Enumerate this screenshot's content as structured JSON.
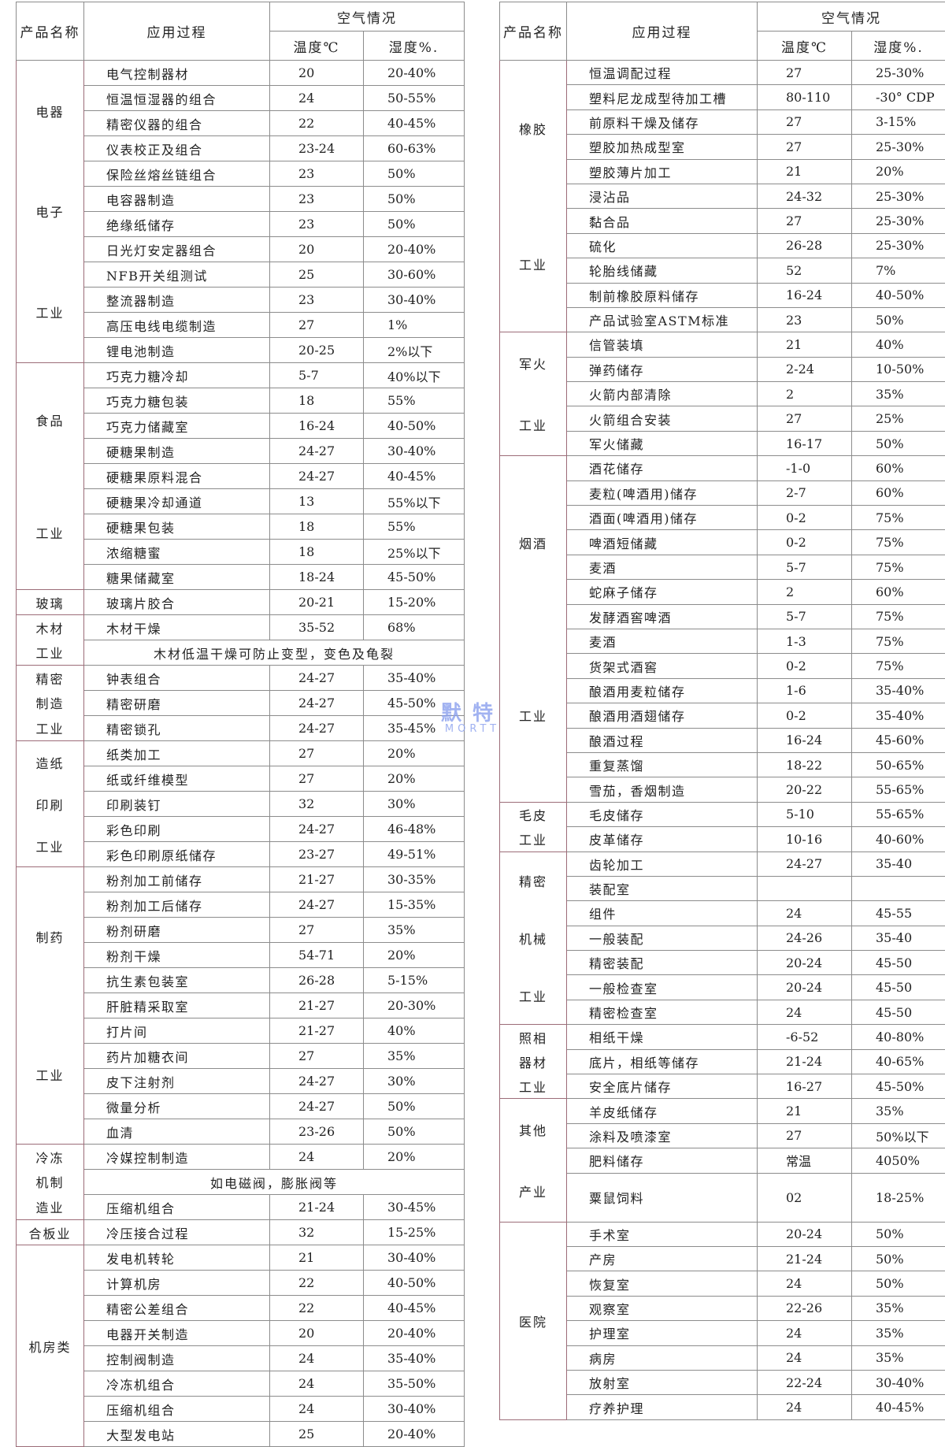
{
  "headers": {
    "product": "产品名称",
    "process": "应用过程",
    "air": "空气情况",
    "temp": "温度℃",
    "humidity": "湿度%."
  },
  "watermark": {
    "cn": "默特",
    "en": "MORTT"
  },
  "left": [
    {
      "category": [
        "电器",
        "电子",
        "工业"
      ],
      "rows": [
        [
          "电气控制器材",
          "20",
          "20-40%"
        ],
        [
          "恒温恒湿器的组合",
          "24",
          "50-55%"
        ],
        [
          "精密仪器的组合",
          "22",
          "40-45%"
        ],
        [
          "仪表校正及组合",
          "23-24",
          "60-63%"
        ],
        [
          "保险丝熔丝链组合",
          "23",
          "50%"
        ],
        [
          "电容器制造",
          "23",
          "50%"
        ],
        [
          "绝缘纸储存",
          "23",
          "50%"
        ],
        [
          "日光灯安定器组合",
          "20",
          "20-40%"
        ],
        [
          "NFB开关组测试",
          "25",
          "30-60%"
        ],
        [
          "整流器制造",
          "23",
          "30-40%"
        ],
        [
          "高压电线电缆制造",
          "27",
          "1%"
        ],
        [
          "锂电池制造",
          "20-25",
          "2%以下"
        ]
      ]
    },
    {
      "category": [
        "食品",
        "工业"
      ],
      "rows": [
        [
          "巧克力糖冷却",
          "5-7",
          "40%以下"
        ],
        [
          "巧克力糖包装",
          "18",
          "55%"
        ],
        [
          "巧克力储藏室",
          "16-24",
          "40-50%"
        ],
        [
          "硬糖果制造",
          "24-27",
          "30-40%"
        ],
        [
          "硬糖果原料混合",
          "24-27",
          "40-45%"
        ],
        [
          "硬糖果冷却通道",
          "13",
          "55%以下"
        ],
        [
          "硬糖果包装",
          "18",
          "55%"
        ],
        [
          "浓缩糖蜜",
          "18",
          "25%以下"
        ],
        [
          "糖果储藏室",
          "18-24",
          "45-50%"
        ]
      ]
    },
    {
      "category": [
        "玻璃"
      ],
      "rows": [
        [
          "玻璃片胶合",
          "20-21",
          "15-20%"
        ]
      ]
    },
    {
      "category": [
        "木材",
        "工业"
      ],
      "rows": [
        [
          "木材干燥",
          "35-52",
          "68%"
        ],
        {
          "merged": "木材低温干燥可防止变型，变色及龟裂"
        }
      ]
    },
    {
      "category": [
        "精密",
        "制造",
        "工业"
      ],
      "rows": [
        [
          "钟表组合",
          "24-27",
          "35-40%"
        ],
        [
          "精密研磨",
          "24-27",
          "45-50%"
        ],
        [
          "精密锁孔",
          "24-27",
          "35-45%"
        ]
      ]
    },
    {
      "category": [
        "造纸",
        "印刷",
        "工业"
      ],
      "rows": [
        [
          "纸类加工",
          "27",
          "20%"
        ],
        [
          "纸或纤维模型",
          "27",
          "20%"
        ],
        [
          "印刷装钉",
          "32",
          "30%"
        ],
        [
          "彩色印刷",
          "24-27",
          "46-48%"
        ],
        [
          "彩色印刷原纸储存",
          "23-27",
          "49-51%"
        ]
      ]
    },
    {
      "category": [
        "制药",
        "工业"
      ],
      "rows": [
        [
          "粉剂加工前储存",
          "21-27",
          "30-35%"
        ],
        [
          "粉剂加工后储存",
          "24-27",
          "15-35%"
        ],
        [
          "粉剂研磨",
          "27",
          "35%"
        ],
        [
          "粉剂干燥",
          "54-71",
          "20%"
        ],
        [
          "抗生素包装室",
          "26-28",
          "5-15%"
        ],
        [
          "肝脏精采取室",
          "21-27",
          "20-30%"
        ],
        [
          "打片间",
          "21-27",
          "40%"
        ],
        [
          "药片加糖衣间",
          "27",
          "35%"
        ],
        [
          "皮下注射剂",
          "24-27",
          "30%"
        ],
        [
          "微量分析",
          "24-27",
          "50%"
        ],
        [
          "血清",
          "23-26",
          "50%"
        ]
      ]
    },
    {
      "category": [
        "冷冻",
        "机制",
        "造业"
      ],
      "rows": [
        [
          "冷媒控制制造",
          "24",
          "20%"
        ],
        {
          "merged": "如电磁阀，膨胀阀等"
        },
        [
          "压缩机组合",
          "21-24",
          "30-45%"
        ]
      ]
    },
    {
      "category": [
        "合板业"
      ],
      "rows": [
        [
          "冷压接合过程",
          "32",
          "15-25%"
        ]
      ]
    },
    {
      "category": [
        "机房类"
      ],
      "rows": [
        [
          "发电机转轮",
          "21",
          "30-40%"
        ],
        [
          "计算机房",
          "22",
          "40-50%"
        ],
        [
          "精密公差组合",
          "22",
          "40-45%"
        ],
        [
          "电器开关制造",
          "20",
          "20-40%"
        ],
        [
          "控制阀制造",
          "24",
          "35-40%"
        ],
        [
          "冷冻机组合",
          "24",
          "35-50%"
        ],
        [
          "压缩机组合",
          "24",
          "30-40%"
        ],
        [
          "大型发电站",
          "25",
          "20-40%"
        ]
      ]
    }
  ],
  "right": [
    {
      "category": [
        "橡胶",
        "工业"
      ],
      "rows": [
        [
          "恒温调配过程",
          "27",
          "25-30%"
        ],
        [
          "塑料尼龙成型待加工槽",
          "80-110",
          "-30° CDP"
        ],
        [
          "前原料干燥及储存",
          "27",
          "3-15%"
        ],
        [
          "塑胶加热成型室",
          "27",
          "25-30%"
        ],
        [
          "塑胶薄片加工",
          "21",
          "20%"
        ],
        [
          "浸沾品",
          "24-32",
          "25-30%"
        ],
        [
          "黏合品",
          "27",
          "25-30%"
        ],
        [
          "硫化",
          "26-28",
          "25-30%"
        ],
        [
          "轮胎线储藏",
          "52",
          "7%"
        ],
        [
          "制前橡胶原料储存",
          "16-24",
          "40-50%"
        ],
        [
          "产品试验室ASTM标准",
          "23",
          "50%"
        ]
      ]
    },
    {
      "category": [
        "军火",
        "工业"
      ],
      "rows": [
        [
          "信管装填",
          "21",
          "40%"
        ],
        [
          "弹药储存",
          "2-24",
          "10-50%"
        ],
        [
          "火箭内部清除",
          "2",
          "35%"
        ],
        [
          "火箭组合安装",
          "27",
          "25%"
        ],
        [
          "军火储藏",
          "16-17",
          "50%"
        ]
      ]
    },
    {
      "category": [
        "烟酒",
        "工业"
      ],
      "rows": [
        [
          "酒花储存",
          "-1-0",
          "60%"
        ],
        [
          "麦粒(啤酒用)储存",
          "2-7",
          "60%"
        ],
        [
          "酒面(啤酒用)储存",
          "0-2",
          "75%"
        ],
        [
          "啤酒短储藏",
          "0-2",
          "75%"
        ],
        [
          "麦酒",
          "5-7",
          "75%"
        ],
        [
          "蛇麻子储存",
          "2",
          "60%"
        ],
        [
          "发酵酒窖啤酒",
          "5-7",
          "75%"
        ],
        [
          "麦酒",
          "1-3",
          "75%"
        ],
        [
          "货架式酒窖",
          "0-2",
          "75%"
        ],
        [
          "酿酒用麦粒储存",
          "1-6",
          "35-40%"
        ],
        [
          "酿酒用酒翅储存",
          "0-2",
          "35-40%"
        ],
        [
          "酿酒过程",
          "16-24",
          "45-60%"
        ],
        [
          "重复蒸馏",
          "18-22",
          "50-65%"
        ],
        [
          "雪茄，香烟制造",
          "20-22",
          "55-65%"
        ]
      ]
    },
    {
      "category": [
        "毛皮",
        "工业"
      ],
      "rows": [
        [
          "毛皮储存",
          "5-10",
          "55-65%"
        ],
        [
          "皮革储存",
          "10-16",
          "40-60%"
        ]
      ]
    },
    {
      "category": [
        "精密",
        "机械",
        "工业"
      ],
      "rows": [
        [
          "齿轮加工",
          "24-27",
          "35-40"
        ],
        [
          "装配室",
          "",
          ""
        ],
        [
          "组件",
          "24",
          "45-55"
        ],
        [
          "一般装配",
          "24-26",
          "35-40"
        ],
        [
          "精密装配",
          "20-24",
          "45-50"
        ],
        [
          "一般检查室",
          "20-24",
          "45-50"
        ],
        [
          "精密检查室",
          "24",
          "45-50"
        ]
      ]
    },
    {
      "category": [
        "照相",
        "器材",
        "工业"
      ],
      "rows": [
        [
          "相纸干燥",
          "-6-52",
          "40-80%"
        ],
        [
          "底片，相纸等储存",
          "21-24",
          "40-65%"
        ],
        [
          "安全底片储存",
          "16-27",
          "45-50%"
        ]
      ]
    },
    {
      "category": [
        "其他",
        "产业"
      ],
      "rows": [
        [
          "羊皮纸储存",
          "21",
          "35%"
        ],
        [
          "涂料及喷漆室",
          "27",
          "50%以下"
        ],
        [
          "肥料储存",
          "常温",
          "4050%"
        ],
        {
          "tall": true,
          "cells": [
            "粟鼠饲料",
            "02",
            "18-25%"
          ]
        }
      ]
    },
    {
      "category": [
        "医院"
      ],
      "rows": [
        [
          "手术室",
          "20-24",
          "50%"
        ],
        [
          "产房",
          "21-24",
          "50%"
        ],
        [
          "恢复室",
          "24",
          "50%"
        ],
        [
          "观察室",
          "22-26",
          "35%"
        ],
        [
          "护理室",
          "24",
          "35%"
        ],
        [
          "病房",
          "24",
          "35%"
        ],
        [
          "放射室",
          "22-24",
          "30-40%"
        ],
        [
          "疗养护理",
          "24",
          "40-45%"
        ]
      ]
    }
  ]
}
